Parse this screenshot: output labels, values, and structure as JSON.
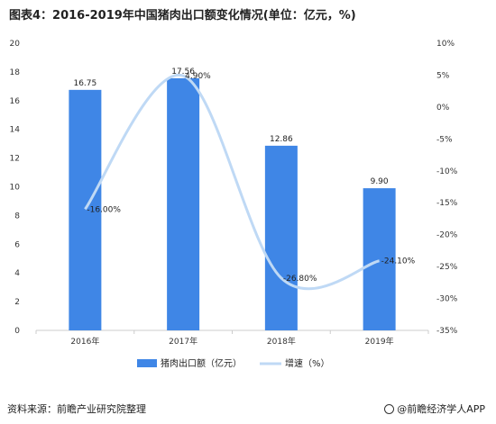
{
  "title": "图表4：2016-2019年中国猪肉出口额变化情况(单位：亿元，%)",
  "source": "资料来源：前瞻产业研究院整理",
  "brand": "@前瞻经济学人APP",
  "colors": {
    "bar": "#3F86E6",
    "line": "#BFD9F5",
    "axis": "#cccccc"
  },
  "chart_data": {
    "type": "bar+line",
    "categories": [
      "2016年",
      "2017年",
      "2018年",
      "2019年"
    ],
    "series": [
      {
        "name": "猪肉出口额（亿元）",
        "type": "bar",
        "axis": "left",
        "values": [
          16.75,
          17.56,
          12.86,
          9.9
        ],
        "labels": [
          "16.75",
          "17.56",
          "12.86",
          "9.90"
        ]
      },
      {
        "name": "增速（%）",
        "type": "line",
        "axis": "right",
        "smooth": true,
        "values": [
          -16.0,
          4.9,
          -26.8,
          -24.1
        ],
        "labels": [
          "-16.00%",
          "4.90%",
          "-26.80%",
          "-24.10%"
        ]
      }
    ],
    "left_axis": {
      "min": 0,
      "max": 20,
      "ticks": [
        0,
        2,
        4,
        6,
        8,
        10,
        12,
        14,
        16,
        18,
        20
      ],
      "tick_labels": [
        "0",
        "2",
        "4",
        "6",
        "8",
        "10",
        "12",
        "14",
        "16",
        "18",
        "20"
      ]
    },
    "right_axis": {
      "min": -35,
      "max": 10,
      "ticks": [
        -35,
        -30,
        -25,
        -20,
        -15,
        -10,
        -5,
        0,
        5,
        10
      ],
      "tick_labels": [
        "-35%",
        "-30%",
        "-25%",
        "-20%",
        "-15%",
        "-10%",
        "-5%",
        "0%",
        "5%",
        "10%"
      ]
    },
    "legend_position": "bottom",
    "grid": false
  }
}
